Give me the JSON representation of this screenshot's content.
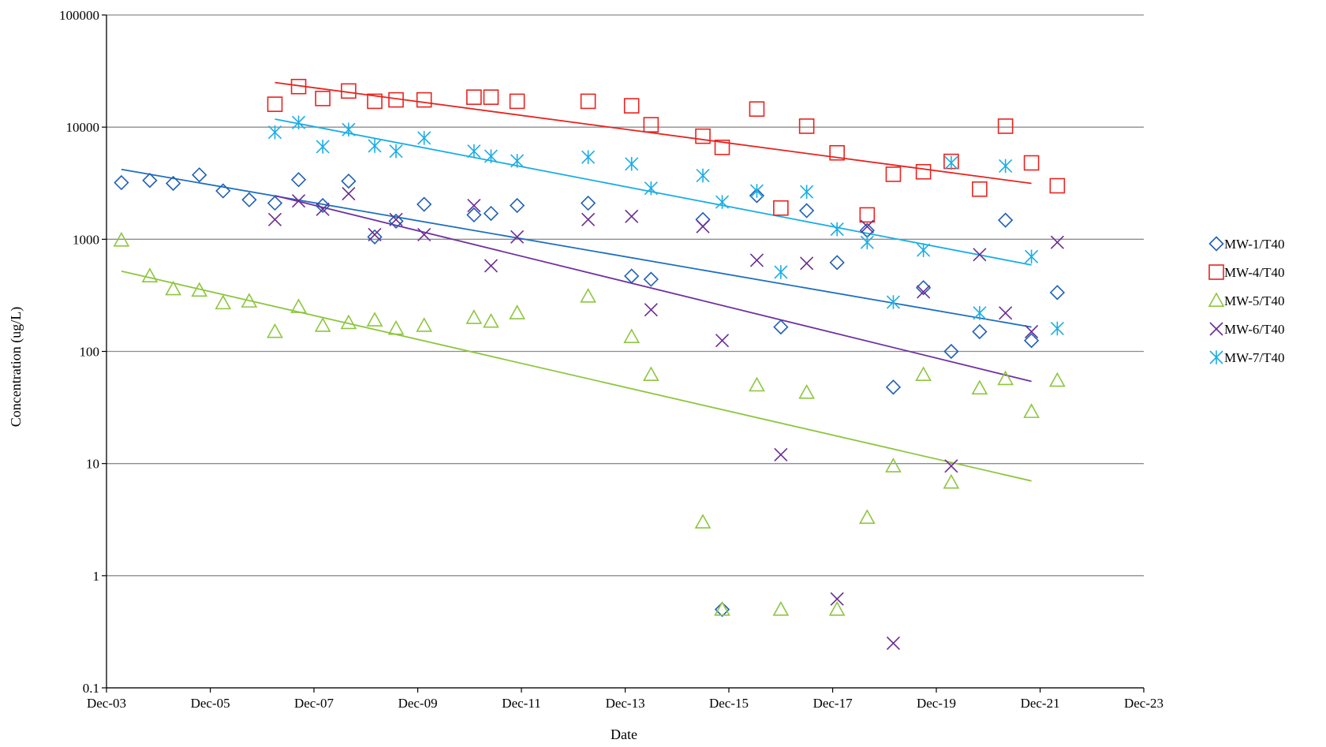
{
  "chart_data": {
    "type": "scatter",
    "title": "",
    "xlabel": "Date",
    "ylabel": "Concentration (ug/L)",
    "x_axis": {
      "type": "date",
      "range": [
        "2003-12-01",
        "2023-12-01"
      ],
      "tick_labels": [
        "Dec-03",
        "Dec-05",
        "Dec-07",
        "Dec-09",
        "Dec-11",
        "Dec-13",
        "Dec-15",
        "Dec-17",
        "Dec-19",
        "Dec-21",
        "Dec-23"
      ],
      "tick_dates": [
        "2003-12-01",
        "2005-12-01",
        "2007-12-01",
        "2009-12-01",
        "2011-12-01",
        "2013-12-01",
        "2015-12-01",
        "2017-12-01",
        "2019-12-01",
        "2021-12-01",
        "2023-12-01"
      ]
    },
    "y_axis": {
      "scale": "log",
      "range": [
        0.1,
        100000
      ],
      "tick_labels": [
        "0.1",
        "1",
        "10",
        "100",
        "1000",
        "10000",
        "100000"
      ],
      "tick_values": [
        0.1,
        1,
        10,
        100,
        1000,
        10000,
        100000
      ]
    },
    "grid": "horizontal",
    "legend": "right",
    "series": [
      {
        "name": "MW-1/T40",
        "marker": "diamond",
        "color": "#1F5FB4",
        "trend_color": "#1F6FC0",
        "trend": {
          "start": {
            "x": "2004-03-15",
            "y": 4200
          },
          "end": {
            "x": "2021-10-01",
            "y": 165
          }
        },
        "points": [
          {
            "x": "2004-03-15",
            "y": 3200
          },
          {
            "x": "2004-10-01",
            "y": 3350
          },
          {
            "x": "2005-03-15",
            "y": 3150
          },
          {
            "x": "2005-09-15",
            "y": 3750
          },
          {
            "x": "2006-03-01",
            "y": 2700
          },
          {
            "x": "2006-09-01",
            "y": 2250
          },
          {
            "x": "2007-03-01",
            "y": 2100
          },
          {
            "x": "2007-08-15",
            "y": 3400
          },
          {
            "x": "2008-02-01",
            "y": 2000
          },
          {
            "x": "2008-08-01",
            "y": 3300
          },
          {
            "x": "2009-02-01",
            "y": 1050
          },
          {
            "x": "2009-07-01",
            "y": 1450
          },
          {
            "x": "2010-01-15",
            "y": 2050
          },
          {
            "x": "2011-01-01",
            "y": 1650
          },
          {
            "x": "2011-05-01",
            "y": 1700
          },
          {
            "x": "2011-11-01",
            "y": 2000
          },
          {
            "x": "2013-03-15",
            "y": 2100
          },
          {
            "x": "2014-01-15",
            "y": 470
          },
          {
            "x": "2014-06-01",
            "y": 440
          },
          {
            "x": "2015-06-01",
            "y": 1500
          },
          {
            "x": "2015-10-15",
            "y": 0.5
          },
          {
            "x": "2016-06-15",
            "y": 2450
          },
          {
            "x": "2016-12-01",
            "y": 165
          },
          {
            "x": "2017-06-01",
            "y": 1800
          },
          {
            "x": "2018-01-01",
            "y": 620
          },
          {
            "x": "2018-08-01",
            "y": 1200
          },
          {
            "x": "2019-02-01",
            "y": 48
          },
          {
            "x": "2019-09-01",
            "y": 370
          },
          {
            "x": "2020-03-15",
            "y": 100
          },
          {
            "x": "2020-10-01",
            "y": 150
          },
          {
            "x": "2021-04-01",
            "y": 1480
          },
          {
            "x": "2021-10-01",
            "y": 125
          },
          {
            "x": "2022-04-01",
            "y": 335
          }
        ]
      },
      {
        "name": "MW-4/T40",
        "marker": "square",
        "color": "#E8231E",
        "trend_color": "#E8231E",
        "trend": {
          "start": {
            "x": "2007-03-01",
            "y": 25000
          },
          "end": {
            "x": "2021-10-01",
            "y": 3150
          }
        },
        "points": [
          {
            "x": "2007-03-01",
            "y": 16000
          },
          {
            "x": "2007-08-15",
            "y": 23000
          },
          {
            "x": "2008-02-01",
            "y": 18000
          },
          {
            "x": "2008-08-01",
            "y": 21000
          },
          {
            "x": "2009-02-01",
            "y": 17000
          },
          {
            "x": "2009-07-01",
            "y": 17500
          },
          {
            "x": "2010-01-15",
            "y": 17500
          },
          {
            "x": "2011-01-01",
            "y": 18500
          },
          {
            "x": "2011-05-01",
            "y": 18500
          },
          {
            "x": "2011-11-01",
            "y": 17000
          },
          {
            "x": "2013-03-15",
            "y": 17000
          },
          {
            "x": "2014-01-15",
            "y": 15500
          },
          {
            "x": "2014-06-01",
            "y": 10500
          },
          {
            "x": "2015-06-01",
            "y": 8300
          },
          {
            "x": "2015-10-15",
            "y": 6600
          },
          {
            "x": "2016-06-15",
            "y": 14500
          },
          {
            "x": "2016-12-01",
            "y": 1900
          },
          {
            "x": "2017-06-01",
            "y": 10200
          },
          {
            "x": "2018-01-01",
            "y": 5900
          },
          {
            "x": "2018-08-01",
            "y": 1650
          },
          {
            "x": "2019-02-01",
            "y": 3800
          },
          {
            "x": "2019-09-01",
            "y": 4000
          },
          {
            "x": "2020-03-15",
            "y": 4950
          },
          {
            "x": "2020-10-01",
            "y": 2800
          },
          {
            "x": "2021-04-01",
            "y": 10200
          },
          {
            "x": "2021-10-01",
            "y": 4800
          },
          {
            "x": "2022-04-01",
            "y": 3000
          }
        ]
      },
      {
        "name": "MW-5/T40",
        "marker": "triangle",
        "color": "#8DC63F",
        "trend_color": "#8DC63F",
        "trend": {
          "start": {
            "x": "2004-03-15",
            "y": 520
          },
          "end": {
            "x": "2021-10-01",
            "y": 7
          }
        },
        "points": [
          {
            "x": "2004-03-15",
            "y": 980
          },
          {
            "x": "2004-10-01",
            "y": 470
          },
          {
            "x": "2005-03-15",
            "y": 360
          },
          {
            "x": "2005-09-15",
            "y": 350
          },
          {
            "x": "2006-03-01",
            "y": 270
          },
          {
            "x": "2006-09-01",
            "y": 280
          },
          {
            "x": "2007-03-01",
            "y": 150
          },
          {
            "x": "2007-08-15",
            "y": 250
          },
          {
            "x": "2008-02-01",
            "y": 170
          },
          {
            "x": "2008-08-01",
            "y": 180
          },
          {
            "x": "2009-02-01",
            "y": 190
          },
          {
            "x": "2009-07-01",
            "y": 160
          },
          {
            "x": "2010-01-15",
            "y": 170
          },
          {
            "x": "2011-01-01",
            "y": 200
          },
          {
            "x": "2011-05-01",
            "y": 185
          },
          {
            "x": "2011-11-01",
            "y": 220
          },
          {
            "x": "2013-03-15",
            "y": 310
          },
          {
            "x": "2014-01-15",
            "y": 135
          },
          {
            "x": "2014-06-01",
            "y": 62
          },
          {
            "x": "2015-06-01",
            "y": 3
          },
          {
            "x": "2015-10-15",
            "y": 0.5
          },
          {
            "x": "2016-06-15",
            "y": 50
          },
          {
            "x": "2016-12-01",
            "y": 0.5
          },
          {
            "x": "2017-06-01",
            "y": 43
          },
          {
            "x": "2018-01-01",
            "y": 0.5
          },
          {
            "x": "2018-08-01",
            "y": 3.3
          },
          {
            "x": "2019-02-01",
            "y": 9.5
          },
          {
            "x": "2019-09-01",
            "y": 62
          },
          {
            "x": "2020-03-15",
            "y": 6.8
          },
          {
            "x": "2020-10-01",
            "y": 47
          },
          {
            "x": "2021-04-01",
            "y": 57
          },
          {
            "x": "2021-10-01",
            "y": 29
          },
          {
            "x": "2022-04-01",
            "y": 55
          }
        ]
      },
      {
        "name": "MW-6/T40",
        "marker": "x",
        "color": "#6A2C91",
        "trend_color": "#7030A0",
        "trend": {
          "start": {
            "x": "2007-03-01",
            "y": 2450
          },
          "end": {
            "x": "2021-10-01",
            "y": 54
          }
        },
        "points": [
          {
            "x": "2007-03-01",
            "y": 1500
          },
          {
            "x": "2007-08-15",
            "y": 2200
          },
          {
            "x": "2008-02-01",
            "y": 1850
          },
          {
            "x": "2008-08-01",
            "y": 2550
          },
          {
            "x": "2009-02-01",
            "y": 1100
          },
          {
            "x": "2009-07-01",
            "y": 1500
          },
          {
            "x": "2010-01-15",
            "y": 1100
          },
          {
            "x": "2011-01-01",
            "y": 2000
          },
          {
            "x": "2011-05-01",
            "y": 580
          },
          {
            "x": "2011-11-01",
            "y": 1050
          },
          {
            "x": "2013-03-15",
            "y": 1500
          },
          {
            "x": "2014-01-15",
            "y": 1600
          },
          {
            "x": "2014-06-01",
            "y": 235
          },
          {
            "x": "2015-06-01",
            "y": 1300
          },
          {
            "x": "2015-10-15",
            "y": 125
          },
          {
            "x": "2016-06-15",
            "y": 650
          },
          {
            "x": "2016-12-01",
            "y": 12
          },
          {
            "x": "2017-06-01",
            "y": 610
          },
          {
            "x": "2018-01-01",
            "y": 0.62
          },
          {
            "x": "2018-08-01",
            "y": 1300
          },
          {
            "x": "2019-02-01",
            "y": 0.25
          },
          {
            "x": "2019-09-01",
            "y": 340
          },
          {
            "x": "2020-03-15",
            "y": 9.5
          },
          {
            "x": "2020-10-01",
            "y": 730
          },
          {
            "x": "2021-04-01",
            "y": 220
          },
          {
            "x": "2021-10-01",
            "y": 150
          },
          {
            "x": "2022-04-01",
            "y": 940
          }
        ]
      },
      {
        "name": "MW-7/T40",
        "marker": "asterisk",
        "color": "#1AADE6",
        "trend_color": "#1AADE6",
        "trend": {
          "start": {
            "x": "2007-03-01",
            "y": 11800
          },
          "end": {
            "x": "2021-10-01",
            "y": 590
          }
        },
        "points": [
          {
            "x": "2007-03-01",
            "y": 9000
          },
          {
            "x": "2007-08-15",
            "y": 11000
          },
          {
            "x": "2008-02-01",
            "y": 6700
          },
          {
            "x": "2008-08-01",
            "y": 9500
          },
          {
            "x": "2009-02-01",
            "y": 6800
          },
          {
            "x": "2009-07-01",
            "y": 6100
          },
          {
            "x": "2010-01-15",
            "y": 8000
          },
          {
            "x": "2011-01-01",
            "y": 6100
          },
          {
            "x": "2011-05-01",
            "y": 5500
          },
          {
            "x": "2011-11-01",
            "y": 5000
          },
          {
            "x": "2013-03-15",
            "y": 5400
          },
          {
            "x": "2014-01-15",
            "y": 4700
          },
          {
            "x": "2014-06-01",
            "y": 2850
          },
          {
            "x": "2015-06-01",
            "y": 3700
          },
          {
            "x": "2015-10-15",
            "y": 2150
          },
          {
            "x": "2016-06-15",
            "y": 2700
          },
          {
            "x": "2016-12-01",
            "y": 510
          },
          {
            "x": "2017-06-01",
            "y": 2650
          },
          {
            "x": "2018-01-01",
            "y": 1230
          },
          {
            "x": "2018-08-01",
            "y": 940
          },
          {
            "x": "2019-02-01",
            "y": 275
          },
          {
            "x": "2019-09-01",
            "y": 800
          },
          {
            "x": "2020-03-15",
            "y": 4800
          },
          {
            "x": "2020-10-01",
            "y": 220
          },
          {
            "x": "2021-04-01",
            "y": 4500
          },
          {
            "x": "2021-10-01",
            "y": 700
          },
          {
            "x": "2022-04-01",
            "y": 160
          }
        ]
      }
    ]
  }
}
